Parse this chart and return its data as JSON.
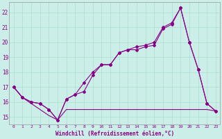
{
  "xlabel": "Windchill (Refroidissement éolien,°C)",
  "background_color": "#cceee8",
  "grid_color": "#aaddcc",
  "line_color": "#880088",
  "xlim": [
    -0.5,
    23.5
  ],
  "ylim": [
    14.5,
    22.7
  ],
  "yticks": [
    15,
    16,
    17,
    18,
    19,
    20,
    21,
    22
  ],
  "xticks": [
    0,
    1,
    2,
    3,
    4,
    5,
    6,
    7,
    8,
    9,
    10,
    11,
    12,
    13,
    14,
    15,
    16,
    17,
    18,
    19,
    20,
    21,
    22,
    23
  ],
  "series1_x": [
    0,
    1,
    2,
    3,
    4,
    5,
    6,
    7,
    8,
    9,
    10,
    11,
    12,
    13,
    14,
    15,
    16,
    17,
    18,
    19,
    20,
    21,
    22,
    23
  ],
  "series1_y": [
    17.0,
    16.3,
    16.0,
    15.9,
    15.5,
    14.8,
    16.2,
    16.5,
    16.7,
    17.8,
    18.5,
    18.5,
    19.3,
    19.5,
    19.5,
    19.7,
    19.8,
    20.9,
    21.2,
    22.3,
    20.0,
    18.2,
    15.9,
    15.4
  ],
  "series2_x": [
    0,
    1,
    2,
    3,
    4,
    5,
    6,
    7,
    8,
    9,
    10,
    11,
    12,
    13,
    14,
    15,
    16,
    17,
    18,
    19,
    20,
    21,
    22,
    23
  ],
  "series2_y": [
    17.0,
    16.3,
    15.9,
    15.5,
    15.1,
    14.8,
    15.5,
    15.5,
    15.5,
    15.5,
    15.5,
    15.5,
    15.5,
    15.5,
    15.5,
    15.5,
    15.5,
    15.5,
    15.5,
    15.5,
    15.5,
    15.5,
    15.5,
    15.4
  ],
  "series3_x": [
    0,
    1,
    2,
    3,
    4,
    5,
    6,
    7,
    8,
    9,
    10,
    11,
    12,
    13,
    14,
    15,
    16,
    17,
    18,
    19,
    20,
    21,
    22,
    23
  ],
  "series3_y": [
    17.0,
    16.3,
    16.0,
    15.9,
    15.5,
    14.8,
    16.2,
    16.5,
    17.3,
    18.0,
    18.5,
    18.5,
    19.3,
    19.5,
    19.7,
    19.8,
    20.0,
    21.0,
    21.3,
    22.3,
    20.0,
    18.2,
    15.9,
    15.4
  ]
}
